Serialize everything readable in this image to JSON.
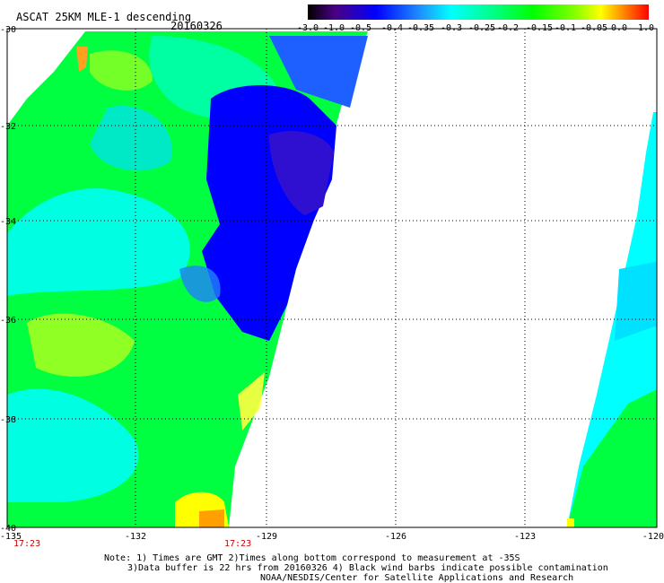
{
  "header": {
    "title": "ASCAT 25KM MLE-1 descending",
    "date": "20160326"
  },
  "colorbar": {
    "labels": [
      "-3.0",
      "-1.0",
      "-0.5",
      "-0.4",
      "-0.35",
      "-0.3",
      "-0.25",
      "-0.2",
      "-0.15",
      "-0.1",
      "-0.05",
      "0.0",
      "1.0"
    ],
    "colors": [
      "#000000",
      "#4b0082",
      "#0000ff",
      "#1e90ff",
      "#00bfff",
      "#00ffff",
      "#40ffc0",
      "#00ff80",
      "#00ff00",
      "#80ff00",
      "#ffff00",
      "#ff8000",
      "#ff0000"
    ]
  },
  "axes": {
    "lon_labels": [
      "-135",
      "-132",
      "-129",
      "-126",
      "-123",
      "-120"
    ],
    "lat_labels": [
      "-30",
      "-32",
      "-34",
      "-36",
      "-38",
      "-40"
    ]
  },
  "time_labels": [
    "17:23",
    "17:23"
  ],
  "notes": [
    "Note: 1) Times are GMT 2)Times along bottom correspond to measurement at -35S",
    "3)Data buffer is 22 hrs from 20160326 4) Black wind barbs indicate possible contamination",
    "NOAA/NESDIS/Center for Satellite Applications and Research"
  ]
}
